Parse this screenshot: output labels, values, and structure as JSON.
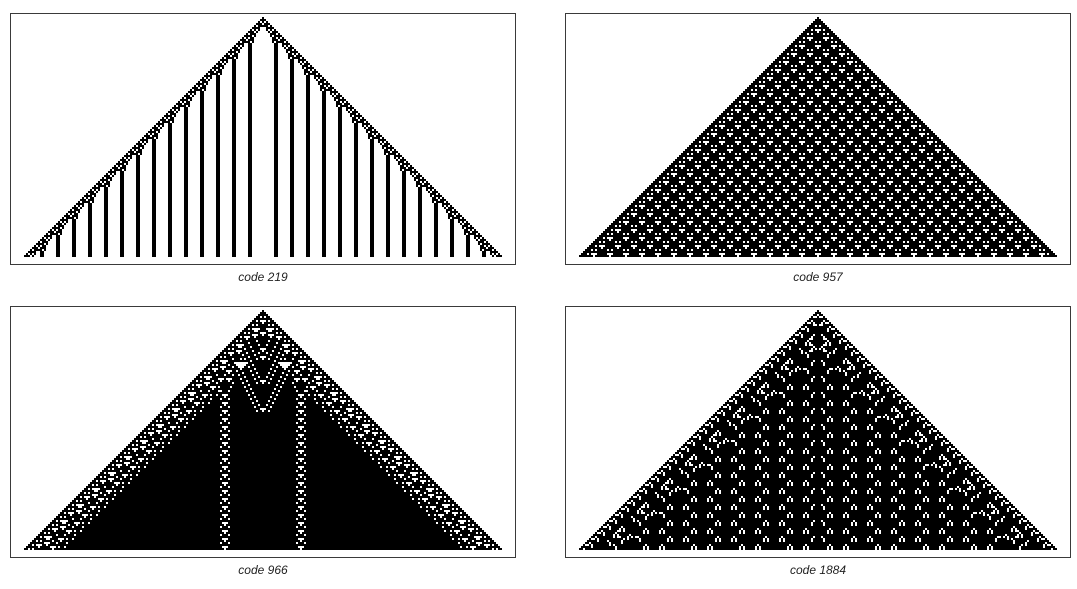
{
  "figure": {
    "panels": [
      {
        "caption": "code 219"
      },
      {
        "caption": "code 957"
      },
      {
        "caption": "code 966"
      },
      {
        "caption": "code 1884"
      }
    ]
  },
  "colors": {
    "cell_on": "#000000",
    "cell_off": "#ffffff",
    "frame": "#3a3a3a",
    "caption": "#222222"
  }
}
